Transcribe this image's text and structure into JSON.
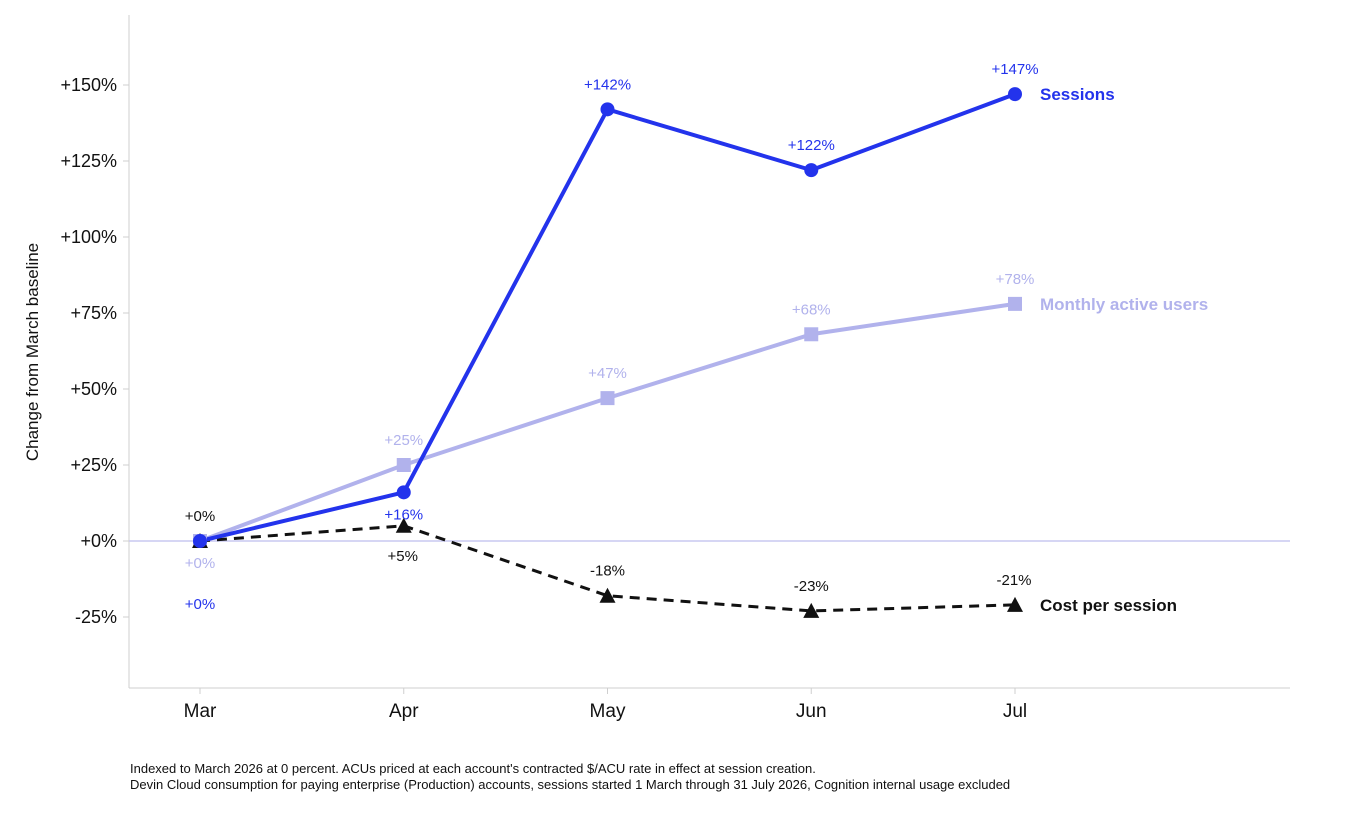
{
  "chart_data": {
    "type": "line",
    "ylabel": "Change from March baseline",
    "xlabel": "",
    "categories": [
      "Mar",
      "Apr",
      "May",
      "Jun",
      "Jul"
    ],
    "ylim": [
      -48,
      175
    ],
    "yticks": [
      -25,
      0,
      25,
      50,
      75,
      100,
      125,
      150
    ],
    "ytick_labels": [
      "-25%",
      "+0%",
      "+25%",
      "+50%",
      "+75%",
      "+100%",
      "+125%",
      "+150%"
    ],
    "baseline": 0,
    "grid": false,
    "legend": "inline labels at right end of each line",
    "series": [
      {
        "name": "Sessions",
        "values": [
          0,
          16,
          142,
          122,
          147
        ],
        "labels": [
          "+0%",
          "+16%",
          "+142%",
          "+122%",
          "+147%"
        ],
        "color": "#2333ec",
        "marker": "circle",
        "dash": false
      },
      {
        "name": "Monthly active users",
        "values": [
          0,
          25,
          47,
          68,
          78
        ],
        "labels": [
          "+0%",
          "+25%",
          "+47%",
          "+68%",
          "+78%"
        ],
        "color": "#b1b2ec",
        "marker": "square",
        "dash": false
      },
      {
        "name": "Cost per session",
        "values": [
          0,
          5,
          -18,
          -23,
          -21
        ],
        "labels": [
          "+0%",
          "+5%",
          "-18%",
          "-23%",
          "-21%"
        ],
        "color": "#111111",
        "marker": "triangle",
        "dash": true
      }
    ]
  },
  "footnotes": [
    "Indexed to March 2026 at 0 percent. ACUs priced at each account's contracted $/ACU rate in effect at session creation.",
    "Devin Cloud consumption for paying enterprise (Production) accounts, sessions started 1 March through 31 July 2026, Cognition internal usage excluded"
  ]
}
